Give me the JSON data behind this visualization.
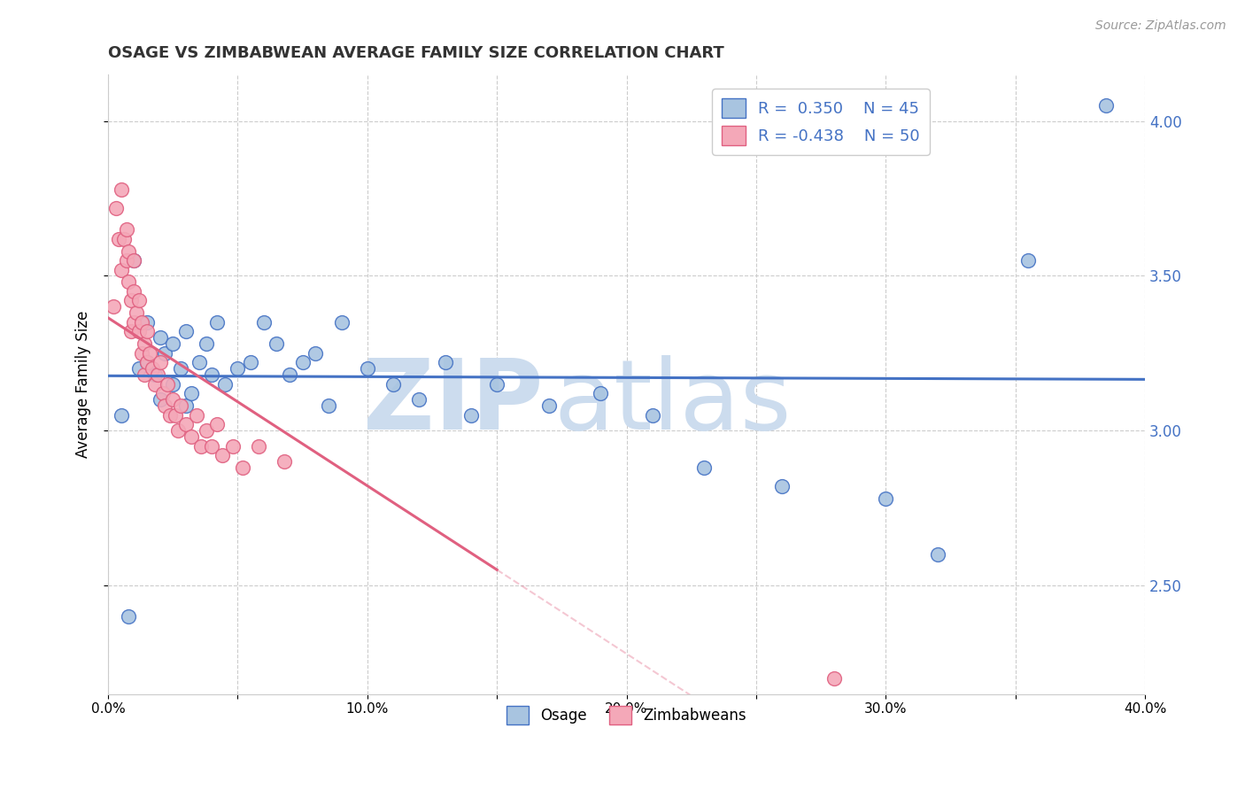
{
  "title": "OSAGE VS ZIMBABWEAN AVERAGE FAMILY SIZE CORRELATION CHART",
  "source_text": "Source: ZipAtlas.com",
  "ylabel": "Average Family Size",
  "xlim": [
    0.0,
    0.4
  ],
  "ylim": [
    2.15,
    4.15
  ],
  "yticks": [
    2.5,
    3.0,
    3.5,
    4.0
  ],
  "xticks": [
    0.0,
    0.05,
    0.1,
    0.15,
    0.2,
    0.25,
    0.3,
    0.35,
    0.4
  ],
  "xtick_labels": [
    "0.0%",
    "",
    "10.0%",
    "",
    "20.0%",
    "",
    "30.0%",
    "",
    "40.0%"
  ],
  "osage_color": "#a8c4e0",
  "zimbabwe_color": "#f4a8b8",
  "osage_line_color": "#4472c4",
  "zimbabwe_line_color": "#e06080",
  "osage_R": 0.35,
  "osage_N": 45,
  "zimbabwe_R": -0.438,
  "zimbabwe_N": 50,
  "legend_color": "#4472c4",
  "osage_x": [
    0.005,
    0.008,
    0.01,
    0.012,
    0.015,
    0.015,
    0.018,
    0.02,
    0.02,
    0.022,
    0.025,
    0.025,
    0.028,
    0.03,
    0.03,
    0.032,
    0.035,
    0.038,
    0.04,
    0.042,
    0.045,
    0.05,
    0.055,
    0.06,
    0.065,
    0.07,
    0.075,
    0.08,
    0.085,
    0.09,
    0.1,
    0.11,
    0.12,
    0.13,
    0.14,
    0.15,
    0.17,
    0.19,
    0.21,
    0.23,
    0.26,
    0.3,
    0.32,
    0.355,
    0.385
  ],
  "osage_y": [
    3.05,
    2.4,
    3.55,
    3.2,
    3.35,
    3.22,
    3.18,
    3.3,
    3.1,
    3.25,
    3.28,
    3.15,
    3.2,
    3.32,
    3.08,
    3.12,
    3.22,
    3.28,
    3.18,
    3.35,
    3.15,
    3.2,
    3.22,
    3.35,
    3.28,
    3.18,
    3.22,
    3.25,
    3.08,
    3.35,
    3.2,
    3.15,
    3.1,
    3.22,
    3.05,
    3.15,
    3.08,
    3.12,
    3.05,
    2.88,
    2.82,
    2.78,
    2.6,
    3.55,
    4.05
  ],
  "zimbabwe_x": [
    0.002,
    0.003,
    0.004,
    0.005,
    0.005,
    0.006,
    0.007,
    0.007,
    0.008,
    0.008,
    0.009,
    0.009,
    0.01,
    0.01,
    0.01,
    0.011,
    0.012,
    0.012,
    0.013,
    0.013,
    0.014,
    0.014,
    0.015,
    0.015,
    0.016,
    0.017,
    0.018,
    0.019,
    0.02,
    0.021,
    0.022,
    0.023,
    0.024,
    0.025,
    0.026,
    0.027,
    0.028,
    0.03,
    0.032,
    0.034,
    0.036,
    0.038,
    0.04,
    0.042,
    0.044,
    0.048,
    0.052,
    0.058,
    0.068,
    0.28
  ],
  "zimbabwe_y": [
    3.4,
    3.72,
    3.62,
    3.78,
    3.52,
    3.62,
    3.65,
    3.55,
    3.58,
    3.48,
    3.42,
    3.32,
    3.55,
    3.45,
    3.35,
    3.38,
    3.42,
    3.32,
    3.35,
    3.25,
    3.28,
    3.18,
    3.32,
    3.22,
    3.25,
    3.2,
    3.15,
    3.18,
    3.22,
    3.12,
    3.08,
    3.15,
    3.05,
    3.1,
    3.05,
    3.0,
    3.08,
    3.02,
    2.98,
    3.05,
    2.95,
    3.0,
    2.95,
    3.02,
    2.92,
    2.95,
    2.88,
    2.95,
    2.9,
    2.2
  ],
  "watermark_color": "#ccdcee",
  "background_color": "#ffffff",
  "grid_color": "#cccccc"
}
